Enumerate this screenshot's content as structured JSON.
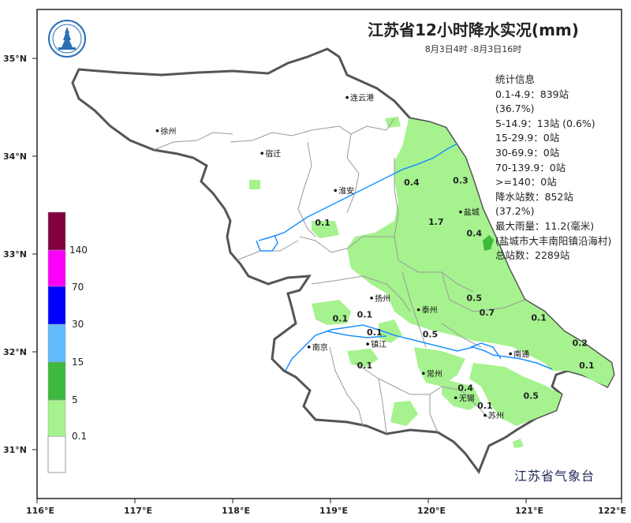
{
  "title": "江苏省12小时降水实况(mm)",
  "subtitle": "8月3日4时 -8月3日16时",
  "agency": "江苏省气象台",
  "stats": {
    "heading": "统计信息",
    "lines": [
      "0.1-4.9：839站",
      "(36.7%)",
      "5-14.9：13站 (0.6%)",
      "15-29.9：0站",
      "30-69.9：0站",
      "70-139.9：0站",
      ">=140：0站",
      "降水站数：852站",
      "(37.2%)",
      "最大雨量：11.2(毫米)",
      "(盐城市大丰南阳镇沿海村)",
      "总站数：2289站"
    ]
  },
  "legend": {
    "levels": [
      {
        "label": "0.1",
        "color": "#ffffff"
      },
      {
        "label": "5",
        "color": "#a6f28f"
      },
      {
        "label": "15",
        "color": "#3dba3d"
      },
      {
        "label": "30",
        "color": "#61bbff"
      },
      {
        "label": "70",
        "color": "#0000ff"
      },
      {
        "label": "140",
        "color": "#fa00fa"
      },
      {
        "label": "",
        "color": "#800040"
      }
    ]
  },
  "axes": {
    "lon_labels": [
      "116°E",
      "117°E",
      "118°E",
      "119°E",
      "120°E",
      "121°E",
      "122°E"
    ],
    "lat_labels": [
      "35°N",
      "34°N",
      "33°N",
      "32°N",
      "31°N"
    ]
  },
  "colors": {
    "rain_light": "#a6f28f",
    "rain_moderate": "#3dba3d",
    "river": "#1e90ff",
    "border": "#555555",
    "county_border": "#999999"
  },
  "cities": [
    {
      "name": "连云港",
      "lon": 119.17,
      "lat": 34.6
    },
    {
      "name": "徐州",
      "lon": 117.23,
      "lat": 34.26
    },
    {
      "name": "宿迁",
      "lon": 118.3,
      "lat": 34.03
    },
    {
      "name": "淮安",
      "lon": 119.05,
      "lat": 33.65
    },
    {
      "name": "盐城",
      "lon": 120.33,
      "lat": 33.43
    },
    {
      "name": "扬州",
      "lon": 119.42,
      "lat": 32.55
    },
    {
      "name": "泰州",
      "lon": 119.9,
      "lat": 32.43
    },
    {
      "name": "南京",
      "lon": 118.78,
      "lat": 32.05
    },
    {
      "name": "镇江",
      "lon": 119.38,
      "lat": 32.08
    },
    {
      "name": "南通",
      "lon": 120.84,
      "lat": 31.98
    },
    {
      "name": "常州",
      "lon": 119.95,
      "lat": 31.78
    },
    {
      "name": "无锡",
      "lon": 120.28,
      "lat": 31.53
    },
    {
      "name": "苏州",
      "lon": 120.58,
      "lat": 31.35
    }
  ],
  "station_values": [
    {
      "value": "0.4",
      "lon": 119.83,
      "lat": 33.7
    },
    {
      "value": "0.3",
      "lon": 120.33,
      "lat": 33.72
    },
    {
      "value": "1.7",
      "lon": 120.08,
      "lat": 33.3
    },
    {
      "value": "0.4",
      "lon": 120.47,
      "lat": 33.18
    },
    {
      "value": "0.1",
      "lon": 118.92,
      "lat": 33.29
    },
    {
      "value": "0.5",
      "lon": 120.47,
      "lat": 32.52
    },
    {
      "value": "0.7",
      "lon": 120.6,
      "lat": 32.37
    },
    {
      "value": "0.1",
      "lon": 121.13,
      "lat": 32.32
    },
    {
      "value": "0.1",
      "lon": 119.35,
      "lat": 32.35
    },
    {
      "value": "0.1",
      "lon": 119.1,
      "lat": 32.31
    },
    {
      "value": "0.5",
      "lon": 120.02,
      "lat": 32.15
    },
    {
      "value": "0.1",
      "lon": 119.45,
      "lat": 32.17
    },
    {
      "value": "0.2",
      "lon": 121.55,
      "lat": 32.06
    },
    {
      "value": "0.1",
      "lon": 119.35,
      "lat": 31.83
    },
    {
      "value": "0.1",
      "lon": 121.62,
      "lat": 31.83
    },
    {
      "value": "0.4",
      "lon": 120.38,
      "lat": 31.6
    },
    {
      "value": "0.1",
      "lon": 120.58,
      "lat": 31.42
    },
    {
      "value": "0.5",
      "lon": 121.05,
      "lat": 31.52
    }
  ]
}
